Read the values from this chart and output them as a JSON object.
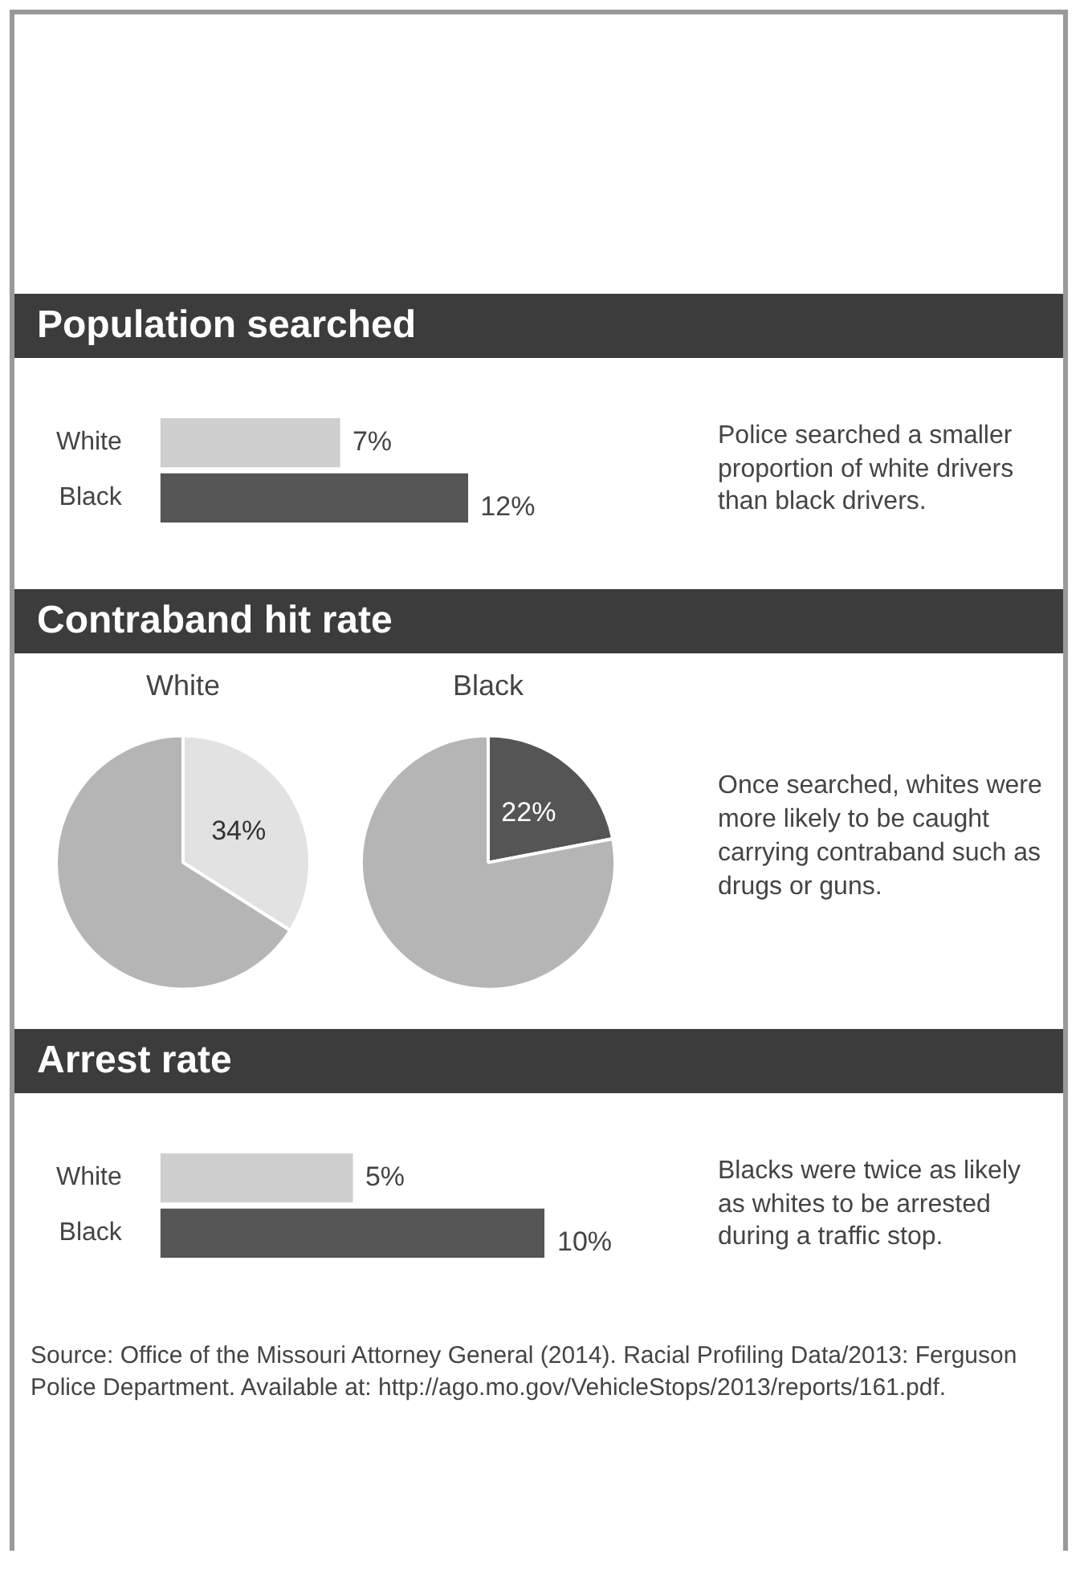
{
  "chart_data": [
    {
      "type": "bar",
      "orientation": "horizontal",
      "title": "Population searched",
      "categories": [
        "White",
        "Black"
      ],
      "values": [
        7,
        12
      ],
      "value_labels": [
        "7%",
        "12%"
      ],
      "colors": [
        "#cfcfcf",
        "#555555"
      ],
      "annotations": [
        "Police searched a smaller proportion of white drivers than black drivers."
      ]
    },
    {
      "type": "pie",
      "title": "Contraband hit rate",
      "subtitle": "White",
      "categories": [
        null,
        null
      ],
      "values": [
        34,
        66
      ],
      "value_labels": [
        "34%",
        null
      ],
      "colors": [
        "#e2e2e2",
        "#b5b5b5"
      ]
    },
    {
      "type": "pie",
      "subtitle": "Black",
      "categories": [
        null,
        null
      ],
      "values": [
        22,
        78
      ],
      "value_labels": [
        "22%",
        null
      ],
      "colors": [
        "#555555",
        "#b5b5b5"
      ],
      "annotations": [
        "Once searched, whites were more likely to be caught carrying contraband such as drugs or guns."
      ]
    },
    {
      "type": "bar",
      "orientation": "horizontal",
      "title": "Arrest rate",
      "categories": [
        "White",
        "Black"
      ],
      "values": [
        5,
        10
      ],
      "value_labels": [
        "5%",
        "10%"
      ],
      "colors": [
        "#cfcfcf",
        "#555555"
      ],
      "annotations": [
        "Blacks were twice as likely as whites to be arrested during a traffic stop.",
        "Source: Office of the Missouri Attorney General (2014). Racial Profiling Data/2013: Ferguson Police Department. Available at: http://ago.mo.gov/VehicleStops/2013/reports/161.pdf."
      ]
    }
  ]
}
